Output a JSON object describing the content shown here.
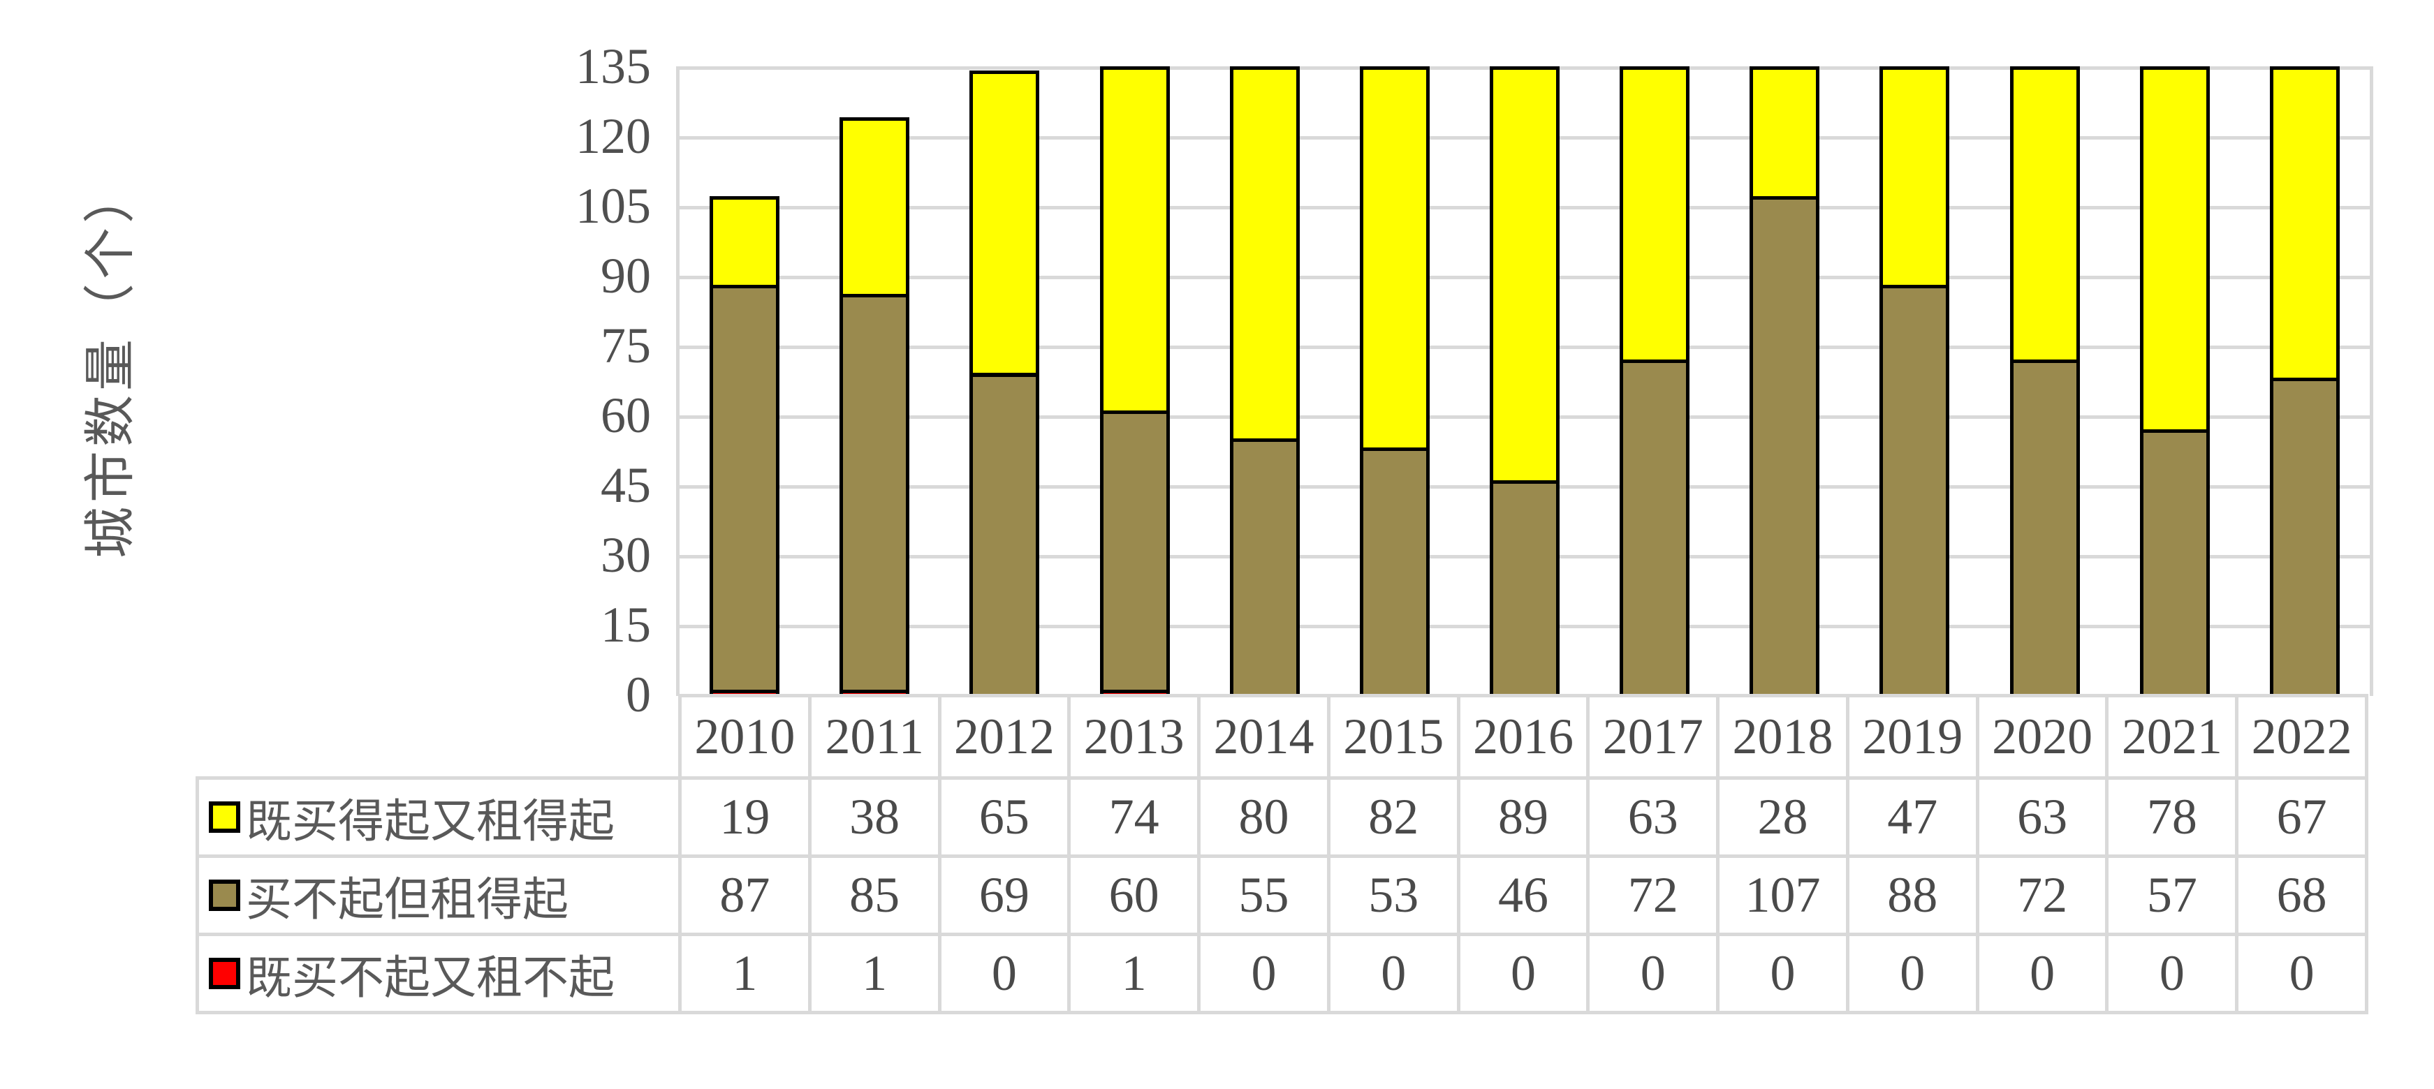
{
  "chart_data": {
    "type": "bar",
    "stacked": true,
    "title": "",
    "ylabel": "城市数量（个）",
    "xlabel": "",
    "categories": [
      "2010",
      "2011",
      "2012",
      "2013",
      "2014",
      "2015",
      "2016",
      "2017",
      "2018",
      "2019",
      "2020",
      "2021",
      "2022"
    ],
    "series": [
      {
        "name": "既买得起又租得起",
        "color": "#ffff00",
        "values": [
          19,
          38,
          65,
          74,
          80,
          82,
          89,
          63,
          28,
          47,
          63,
          78,
          67
        ]
      },
      {
        "name": "买不起但租得起",
        "color": "#9a8a4e",
        "values": [
          87,
          85,
          69,
          60,
          55,
          53,
          46,
          72,
          107,
          88,
          72,
          57,
          68
        ]
      },
      {
        "name": "既买不起又租不起",
        "color": "#ff0000",
        "values": [
          1,
          1,
          0,
          1,
          0,
          0,
          0,
          0,
          0,
          0,
          0,
          0,
          0
        ]
      }
    ],
    "y_axis": {
      "min": 0,
      "max": 135,
      "step": 15,
      "ticks": [
        135,
        120,
        105,
        90,
        75,
        60,
        45,
        30,
        15,
        0
      ]
    },
    "grid": "horizontal",
    "gridline_color": "#d9d9d9",
    "bar_outline_color": "#000000",
    "text_color": "#595959",
    "legend_position": "table-left",
    "table_includes_header_years": true
  }
}
